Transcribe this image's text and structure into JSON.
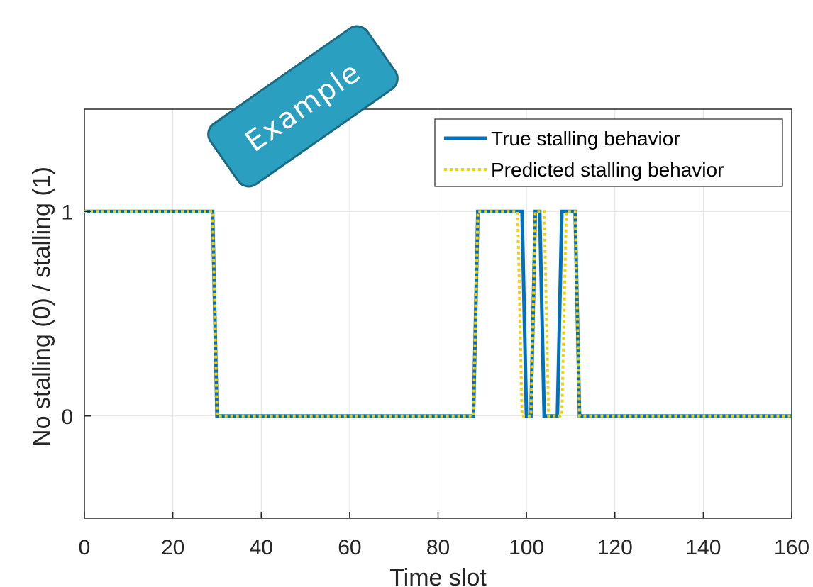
{
  "badge": {
    "text": "Example",
    "color": "#2a9fbf"
  },
  "chart_data": {
    "type": "line",
    "title": "",
    "xlabel": "Time slot",
    "ylabel": "No stalling (0) / stalling (1)",
    "xlim": [
      0,
      160
    ],
    "ylim": [
      -0.5,
      1.5
    ],
    "xticks": [
      0,
      20,
      40,
      60,
      80,
      100,
      120,
      140,
      160
    ],
    "yticks": [
      0,
      1
    ],
    "grid": true,
    "legend_position": "top-right",
    "series": [
      {
        "name": "True stalling behavior",
        "color": "#0072bd",
        "style": "solid",
        "x": [
          0,
          29,
          30,
          88,
          89,
          99,
          100,
          101,
          102,
          103,
          104,
          105,
          106,
          107,
          108,
          109,
          110,
          111,
          112,
          160
        ],
        "y": [
          1,
          1,
          0,
          0,
          1,
          1,
          0,
          0,
          1,
          1,
          0,
          0,
          0,
          0,
          1,
          1,
          1,
          1,
          0,
          0
        ]
      },
      {
        "name": "Predicted stalling behavior",
        "color": "#f5d000",
        "style": "dotted",
        "x": [
          0,
          29,
          30,
          88,
          89,
          98,
          99,
          100,
          101,
          102,
          103,
          104,
          105,
          106,
          107,
          108,
          109,
          110,
          111,
          112,
          160
        ],
        "y": [
          1,
          1,
          0,
          0,
          1,
          1,
          0,
          0,
          0,
          1,
          1,
          1,
          0,
          0,
          0,
          0,
          1,
          1,
          1,
          0,
          0
        ]
      }
    ]
  }
}
